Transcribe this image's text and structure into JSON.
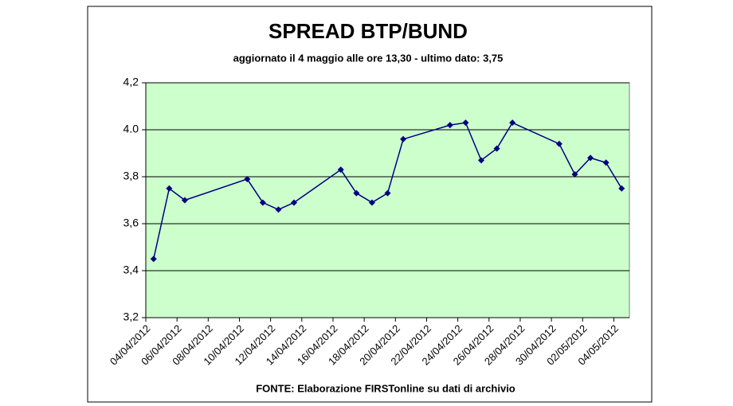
{
  "chart_data": {
    "type": "line",
    "title": "SPREAD BTP/BUND",
    "subtitle": "aggiornato il 4 maggio alle ore 13,30 - ultimo dato: 3,75",
    "source": "FONTE: Elaborazione FIRSTonline su dati di archivio",
    "x": [
      "04/04/2012",
      "05/04/2012",
      "06/04/2012",
      "10/04/2012",
      "11/04/2012",
      "12/04/2012",
      "13/04/2012",
      "16/04/2012",
      "17/04/2012",
      "18/04/2012",
      "19/04/2012",
      "20/04/2012",
      "23/04/2012",
      "24/04/2012",
      "25/04/2012",
      "26/04/2012",
      "27/04/2012",
      "30/04/2012",
      "01/05/2012",
      "02/05/2012",
      "03/05/2012",
      "04/05/2012"
    ],
    "values": [
      3.45,
      3.75,
      3.7,
      3.79,
      3.69,
      3.66,
      3.69,
      3.83,
      3.73,
      3.69,
      3.73,
      3.96,
      4.02,
      4.03,
      3.87,
      3.92,
      4.03,
      3.94,
      3.81,
      3.88,
      3.86,
      3.75
    ],
    "color": "#000080",
    "plot_background": "#ccffcc",
    "grid": true,
    "xlim": [
      "04/04/2012",
      "04/05/2012"
    ],
    "xticks": [
      "04/04/2012",
      "06/04/2012",
      "08/04/2012",
      "10/04/2012",
      "12/04/2012",
      "14/04/2012",
      "16/04/2012",
      "18/04/2012",
      "20/04/2012",
      "22/04/2012",
      "24/04/2012",
      "26/04/2012",
      "28/04/2012",
      "30/04/2012",
      "02/05/2012",
      "04/05/2012"
    ],
    "ylim": [
      3.2,
      4.2
    ],
    "yticks": [
      {
        "value": 3.2,
        "label": "3,2"
      },
      {
        "value": 3.4,
        "label": "3,4"
      },
      {
        "value": 3.6,
        "label": "3,6"
      },
      {
        "value": 3.8,
        "label": "3,8"
      },
      {
        "value": 4.0,
        "label": "4.0"
      },
      {
        "value": 4.2,
        "label": "4,2"
      }
    ]
  }
}
